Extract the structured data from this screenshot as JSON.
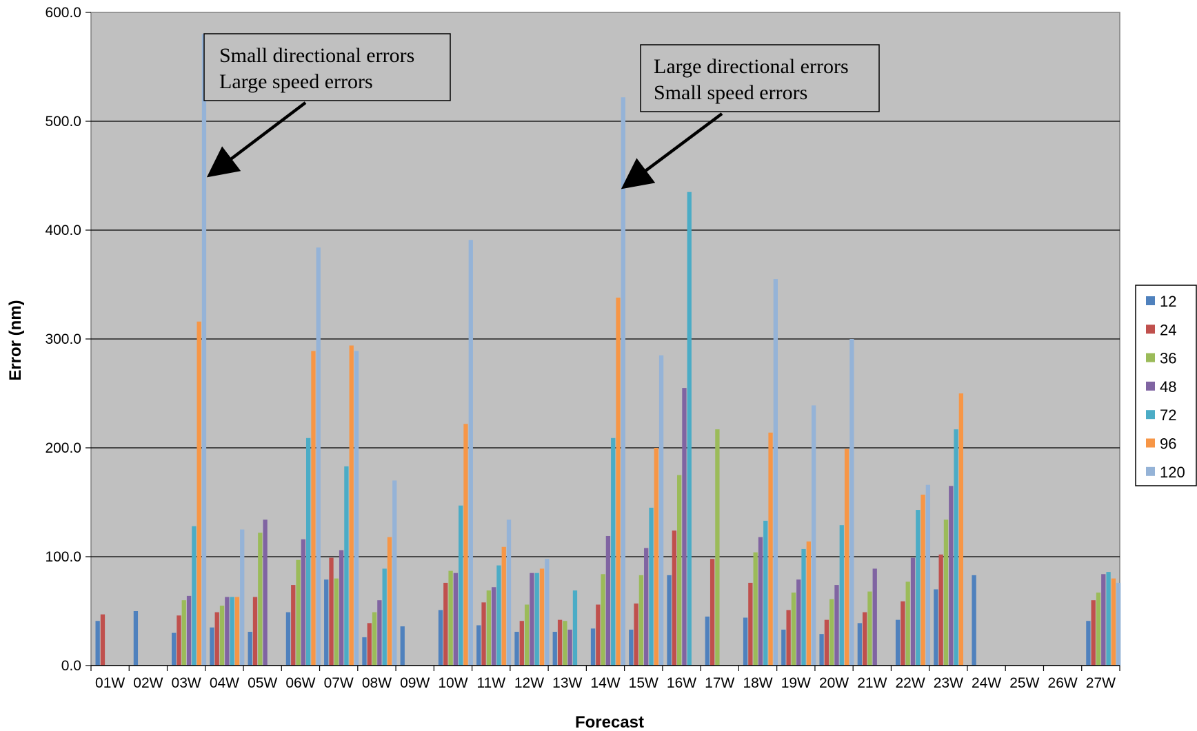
{
  "chart_data": {
    "type": "bar",
    "title": "",
    "xlabel": "Forecast",
    "ylabel": "Error (nm)",
    "ylim": [
      0,
      600
    ],
    "yticks": [
      "0.0",
      "100.0",
      "200.0",
      "300.0",
      "400.0",
      "500.0",
      "600.0"
    ],
    "grid": true,
    "legend_position": "right",
    "categories": [
      "01W",
      "02W",
      "03W",
      "04W",
      "05W",
      "06W",
      "07W",
      "08W",
      "09W",
      "10W",
      "11W",
      "12W",
      "13W",
      "14W",
      "15W",
      "16W",
      "17W",
      "18W",
      "19W",
      "20W",
      "21W",
      "22W",
      "23W",
      "24W",
      "25W",
      "26W",
      "27W"
    ],
    "series": [
      {
        "name": "12",
        "color": "#4F81BD",
        "values": [
          41,
          50,
          30,
          35,
          31,
          49,
          79,
          26,
          36,
          51,
          37,
          31,
          31,
          34,
          33,
          83,
          45,
          44,
          33,
          29,
          39,
          42,
          70,
          83,
          null,
          null,
          41
        ]
      },
      {
        "name": "24",
        "color": "#C0504D",
        "values": [
          47,
          null,
          46,
          49,
          63,
          74,
          99,
          39,
          null,
          76,
          58,
          41,
          42,
          56,
          57,
          124,
          98,
          76,
          51,
          42,
          49,
          59,
          102,
          null,
          null,
          null,
          60
        ]
      },
      {
        "name": "36",
        "color": "#9BBB59",
        "values": [
          null,
          null,
          60,
          55,
          122,
          97,
          80,
          49,
          null,
          87,
          69,
          56,
          41,
          84,
          83,
          175,
          217,
          104,
          67,
          61,
          68,
          77,
          134,
          null,
          null,
          null,
          67
        ]
      },
      {
        "name": "48",
        "color": "#8064A2",
        "values": [
          null,
          null,
          64,
          63,
          134,
          116,
          106,
          60,
          null,
          85,
          72,
          85,
          33,
          119,
          108,
          255,
          null,
          118,
          79,
          74,
          89,
          99,
          165,
          null,
          null,
          null,
          84
        ]
      },
      {
        "name": "72",
        "color": "#4BACC6",
        "values": [
          null,
          null,
          128,
          63,
          null,
          209,
          183,
          89,
          null,
          147,
          92,
          85,
          69,
          209,
          145,
          435,
          null,
          133,
          107,
          129,
          null,
          143,
          217,
          null,
          null,
          null,
          86
        ]
      },
      {
        "name": "96",
        "color": "#F79646",
        "values": [
          null,
          null,
          316,
          63,
          null,
          289,
          294,
          118,
          null,
          222,
          109,
          89,
          null,
          338,
          200,
          null,
          null,
          214,
          114,
          199,
          null,
          157,
          250,
          null,
          null,
          null,
          80
        ]
      },
      {
        "name": "120",
        "color": "#95B3D7",
        "values": [
          null,
          null,
          580,
          125,
          null,
          384,
          289,
          170,
          null,
          391,
          134,
          98,
          null,
          522,
          285,
          null,
          null,
          355,
          239,
          300,
          null,
          166,
          null,
          null,
          null,
          null,
          76
        ]
      }
    ],
    "annotations": [
      {
        "lines": [
          "Small directional errors",
          "Large speed errors"
        ],
        "points_to": {
          "category": "03W",
          "series": "120"
        }
      },
      {
        "lines": [
          "Large directional errors",
          "Small speed errors"
        ],
        "points_to": {
          "category": "14W",
          "series": "120"
        }
      }
    ]
  }
}
